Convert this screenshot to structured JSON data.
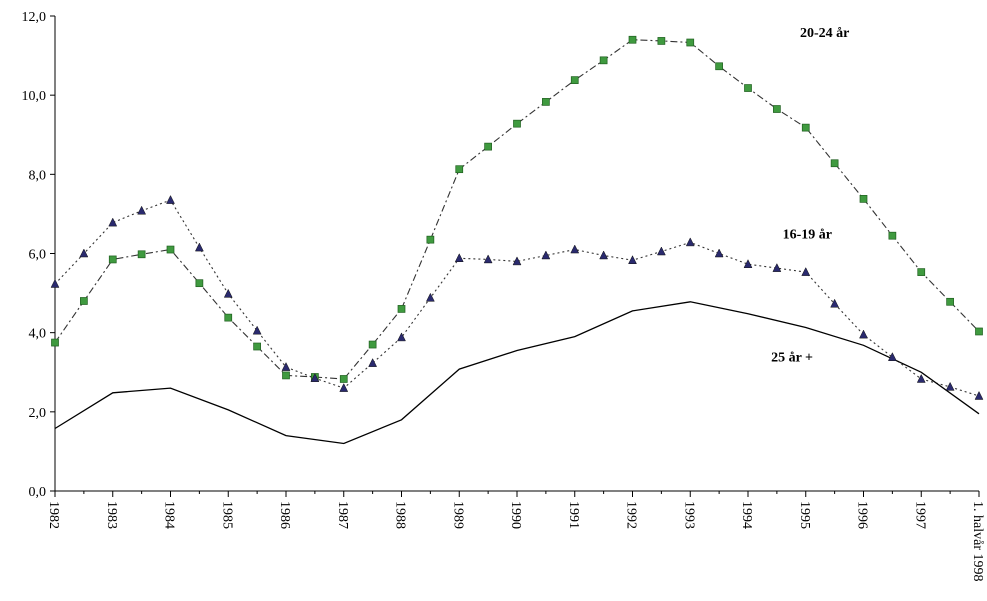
{
  "chart_data": {
    "type": "line",
    "title": "",
    "xlabel": "",
    "ylabel": "",
    "ylim": [
      0,
      12
    ],
    "yticks": [
      "0,0",
      "2,0",
      "4,0",
      "6,0",
      "8,0",
      "10,0",
      "12,0"
    ],
    "year_labels": [
      "1982",
      "1983",
      "1984",
      "1985",
      "1986",
      "1987",
      "1988",
      "1989",
      "1990",
      "1991",
      "1992",
      "1993",
      "1994",
      "1995",
      "1996",
      "1997",
      "1. halvår 1998"
    ],
    "x": [
      0,
      0.5,
      1,
      1.5,
      2,
      2.5,
      3,
      3.5,
      4,
      4.5,
      5,
      5.5,
      6,
      6.5,
      7,
      7.5,
      8,
      8.5,
      9,
      9.5,
      10,
      10.5,
      11,
      11.5,
      12,
      12.5,
      13,
      13.5,
      14,
      14.5,
      15,
      15.5,
      16
    ],
    "grid": false,
    "legend": "none",
    "series": [
      {
        "name": "20-24 år",
        "marker": "square",
        "line_style": "dash-dot",
        "color": "#3f9a3f",
        "values": [
          3.75,
          4.8,
          5.85,
          5.98,
          6.1,
          5.25,
          4.38,
          3.65,
          2.92,
          2.88,
          2.83,
          3.7,
          4.6,
          6.35,
          8.13,
          8.7,
          9.28,
          9.83,
          10.38,
          10.88,
          11.4,
          11.37,
          11.33,
          10.73,
          10.18,
          9.65,
          9.18,
          8.28,
          7.38,
          6.45,
          5.53,
          4.78,
          4.03
        ]
      },
      {
        "name": "16-19 år",
        "marker": "triangle",
        "line_style": "dotted",
        "color": "#2a2a6e",
        "values": [
          5.23,
          6.0,
          6.78,
          7.08,
          7.35,
          6.15,
          4.98,
          4.05,
          3.13,
          2.85,
          2.6,
          3.23,
          3.88,
          4.88,
          5.88,
          5.85,
          5.8,
          5.95,
          6.1,
          5.95,
          5.83,
          6.05,
          6.28,
          6.0,
          5.73,
          5.63,
          5.53,
          4.73,
          3.95,
          3.38,
          2.83,
          2.63,
          2.4
        ]
      },
      {
        "name": "25 år +",
        "marker": "none",
        "line_style": "solid",
        "color": "#000000",
        "values": [
          1.58,
          null,
          2.48,
          null,
          2.6,
          null,
          2.05,
          null,
          1.4,
          null,
          1.2,
          null,
          1.8,
          null,
          3.08,
          null,
          3.55,
          null,
          3.9,
          null,
          4.55,
          null,
          4.78,
          null,
          4.48,
          null,
          4.13,
          null,
          3.68,
          null,
          3.0,
          null,
          1.95
        ]
      }
    ]
  }
}
